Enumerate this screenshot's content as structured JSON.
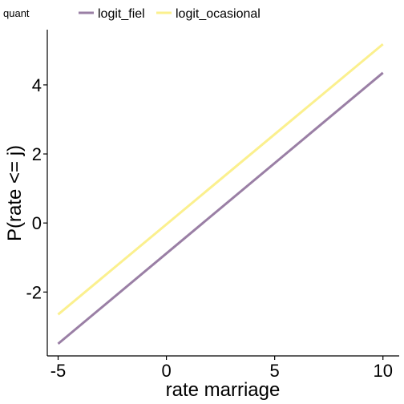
{
  "chart_data": {
    "type": "line",
    "title": "",
    "xlabel": "rate marriage",
    "ylabel": "P(rate <= j)",
    "xlim": [
      -5.5,
      10.75
    ],
    "ylim": [
      -3.85,
      5.6
    ],
    "xticks": [
      -5,
      0,
      5,
      10
    ],
    "yticks": [
      -2,
      0,
      2,
      4
    ],
    "xtick_labels": [
      "-5",
      "0",
      "5",
      "10"
    ],
    "ytick_labels": [
      "-2",
      "0",
      "2",
      "4"
    ],
    "grid": false,
    "legend": {
      "title": "quant",
      "position": "top-left"
    },
    "series": [
      {
        "name": "logit_fiel",
        "color": "#9a7fa5",
        "x": [
          -5,
          10
        ],
        "y": [
          -3.5,
          4.35
        ]
      },
      {
        "name": "logit_ocasional",
        "color": "#fbf08e",
        "x": [
          -5,
          10
        ],
        "y": [
          -2.65,
          5.18
        ]
      }
    ]
  }
}
